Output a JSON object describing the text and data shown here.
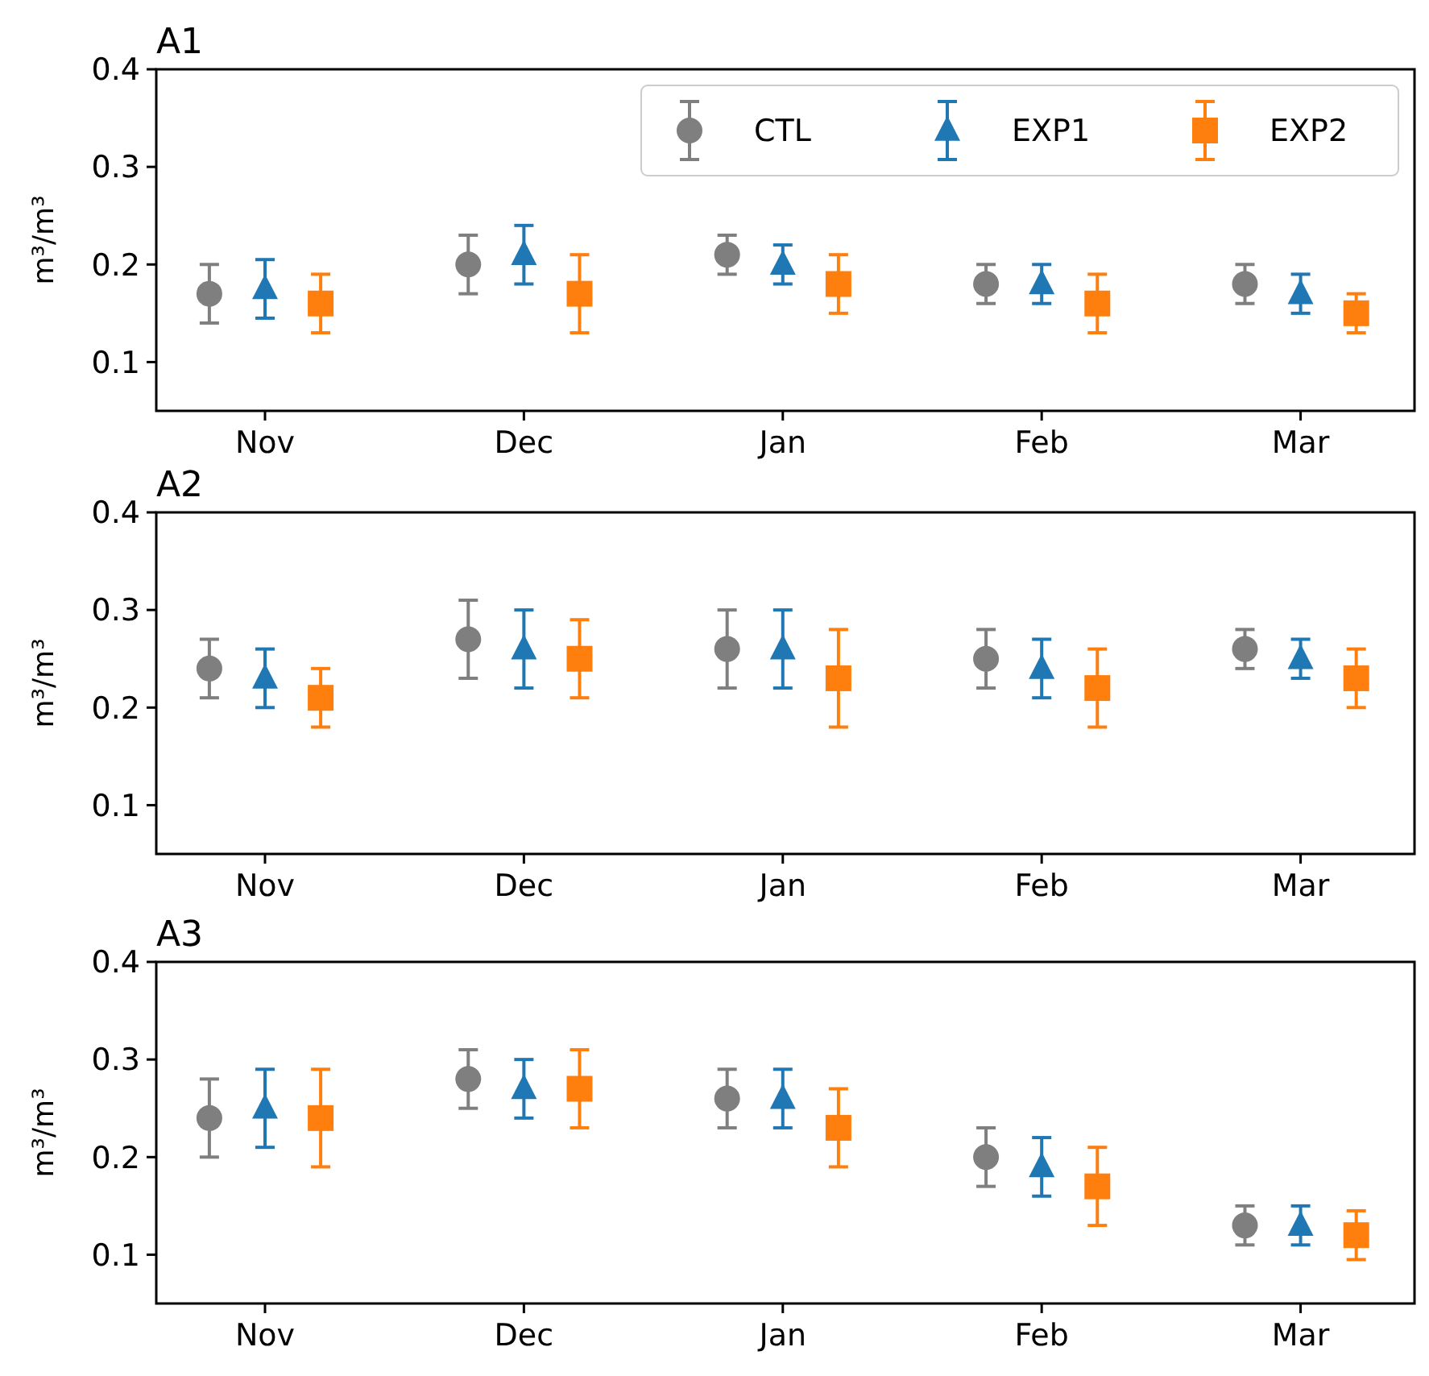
{
  "chart_data": [
    {
      "type": "scatter",
      "title": "A1",
      "ylabel": "m³/m³",
      "categories": [
        "Nov",
        "Dec",
        "Jan",
        "Feb",
        "Mar"
      ],
      "ylim": [
        0.05,
        0.4
      ],
      "yticks": [
        0.1,
        0.2,
        0.3,
        0.4
      ],
      "legend": "top right",
      "grid": false,
      "series": [
        {
          "name": "CTL",
          "color": "#7f7f7f",
          "marker": "circle",
          "values": [
            0.17,
            0.2,
            0.21,
            0.18,
            0.18
          ],
          "errors": [
            0.03,
            0.03,
            0.02,
            0.02,
            0.02
          ]
        },
        {
          "name": "EXP1",
          "color": "#1f77b4",
          "marker": "triangle",
          "values": [
            0.175,
            0.21,
            0.2,
            0.18,
            0.17
          ],
          "errors": [
            0.03,
            0.03,
            0.02,
            0.02,
            0.02
          ]
        },
        {
          "name": "EXP2",
          "color": "#ff7f0e",
          "marker": "square",
          "values": [
            0.16,
            0.17,
            0.18,
            0.16,
            0.15
          ],
          "errors": [
            0.03,
            0.04,
            0.03,
            0.03,
            0.02
          ]
        }
      ]
    },
    {
      "type": "scatter",
      "title": "A2",
      "ylabel": "m³/m³",
      "categories": [
        "Nov",
        "Dec",
        "Jan",
        "Feb",
        "Mar"
      ],
      "ylim": [
        0.05,
        0.4
      ],
      "yticks": [
        0.1,
        0.2,
        0.3,
        0.4
      ],
      "grid": false,
      "series": [
        {
          "color": "#7f7f7f",
          "marker": "circle",
          "values": [
            0.24,
            0.27,
            0.26,
            0.25,
            0.26
          ],
          "errors": [
            0.03,
            0.04,
            0.04,
            0.03,
            0.02
          ]
        },
        {
          "color": "#1f77b4",
          "marker": "triangle",
          "values": [
            0.23,
            0.26,
            0.26,
            0.24,
            0.25
          ],
          "errors": [
            0.03,
            0.04,
            0.04,
            0.03,
            0.02
          ]
        },
        {
          "color": "#ff7f0e",
          "marker": "square",
          "values": [
            0.21,
            0.25,
            0.23,
            0.22,
            0.23
          ],
          "errors": [
            0.03,
            0.04,
            0.05,
            0.04,
            0.03
          ]
        }
      ]
    },
    {
      "type": "scatter",
      "title": "A3",
      "ylabel": "m³/m³",
      "categories": [
        "Nov",
        "Dec",
        "Jan",
        "Feb",
        "Mar"
      ],
      "ylim": [
        0.05,
        0.4
      ],
      "yticks": [
        0.1,
        0.2,
        0.3,
        0.4
      ],
      "grid": false,
      "series": [
        {
          "color": "#7f7f7f",
          "marker": "circle",
          "values": [
            0.24,
            0.28,
            0.26,
            0.2,
            0.13
          ],
          "errors": [
            0.04,
            0.03,
            0.03,
            0.03,
            0.02
          ]
        },
        {
          "color": "#1f77b4",
          "marker": "triangle",
          "values": [
            0.25,
            0.27,
            0.26,
            0.19,
            0.13
          ],
          "errors": [
            0.04,
            0.03,
            0.03,
            0.03,
            0.02
          ]
        },
        {
          "color": "#ff7f0e",
          "marker": "square",
          "values": [
            0.24,
            0.27,
            0.23,
            0.17,
            0.12
          ],
          "errors": [
            0.05,
            0.04,
            0.04,
            0.04,
            0.025
          ]
        }
      ]
    }
  ]
}
